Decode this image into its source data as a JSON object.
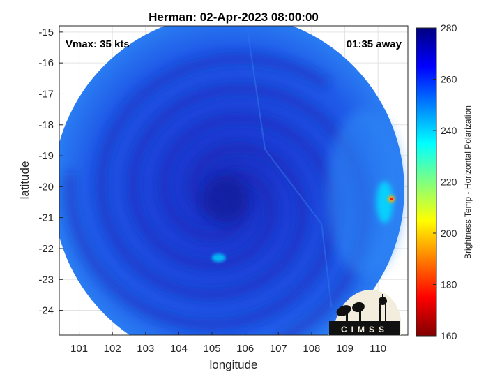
{
  "chart_data": {
    "type": "heatmap",
    "title": "Herman: 02-Apr-2023 08:00:00",
    "xlabel": "longitude",
    "ylabel": "latitude",
    "xlim": [
      100.4,
      110.9
    ],
    "ylim": [
      -24.8,
      -14.8
    ],
    "x_ticks": [
      101,
      102,
      103,
      104,
      105,
      106,
      107,
      108,
      109,
      110
    ],
    "y_ticks": [
      -15,
      -16,
      -17,
      -18,
      -19,
      -20,
      -21,
      -22,
      -23,
      -24
    ],
    "grid": true,
    "annotations": {
      "vmax": "Vmax: 35 kts",
      "time_offset": "01:35 away"
    },
    "storm_center": {
      "lon": 105.4,
      "lat": -20.4
    },
    "scan_footprint_center": {
      "lon": 105.5,
      "lat": -20.1
    },
    "colorbar": {
      "label": "Brightness Temp - Horizontal Polarization",
      "range": [
        160,
        280
      ],
      "ticks": [
        280,
        260,
        240,
        220,
        200,
        180,
        160
      ],
      "colormap": "jet"
    },
    "features": [
      {
        "name": "eye",
        "lon": 105.4,
        "lat": -20.4,
        "temp": 266
      },
      {
        "name": "warm-anomaly",
        "lon": 110.4,
        "lat": -20.4,
        "temp": 195
      },
      {
        "name": "cold-band-east",
        "lon": 110.2,
        "lat": -20.5,
        "temp": 238
      },
      {
        "name": "cold-patch-south",
        "lon": 105.2,
        "lat": -22.3,
        "temp": 240
      }
    ]
  },
  "logo": {
    "text": "CIMSS"
  }
}
